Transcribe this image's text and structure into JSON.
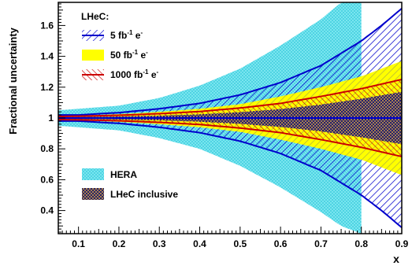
{
  "chart_data": {
    "type": "area",
    "xlabel": "x",
    "ylabel": "Fractional uncertainty",
    "xlim": [
      0.05,
      0.9
    ],
    "ylim": [
      0.25,
      1.75
    ],
    "x_ticks": [
      "0.1",
      "0.2",
      "0.3",
      "0.4",
      "0.5",
      "0.6",
      "0.7",
      "0.8",
      "0.9"
    ],
    "y_ticks": [
      "0.4",
      "0.6",
      "0.8",
      "1",
      "1.2",
      "1.4",
      "1.6"
    ],
    "x_tick_values": [
      0.1,
      0.2,
      0.3,
      0.4,
      0.5,
      0.6,
      0.7,
      0.8,
      0.9
    ],
    "y_tick_values": [
      0.4,
      0.6,
      0.8,
      1.0,
      1.2,
      1.4,
      1.6
    ],
    "legend_top": {
      "title": "LHeC:",
      "entries": [
        {
          "base": "5 fb",
          "sup": "-1",
          "suffix": " e",
          "sup2": "-",
          "style": "blue-hatch"
        },
        {
          "base": "50 fb",
          "sup": "-1",
          "suffix": " e",
          "sup2": "-",
          "style": "yellow-fill"
        },
        {
          "base": "1000 fb",
          "sup": "-1",
          "suffix": " e",
          "sup2": "-",
          "style": "red-hatch"
        }
      ],
      "placement": "top-left"
    },
    "legend_bottom": {
      "entries": [
        {
          "label": "HERA",
          "style": "cyan-crosshatch"
        },
        {
          "label": "LHeC inclusive",
          "style": "navy-crosshatch"
        }
      ],
      "placement": "bottom-left"
    },
    "series": [
      {
        "name": "HERA",
        "x": [
          0.05,
          0.1,
          0.2,
          0.3,
          0.4,
          0.5,
          0.6,
          0.7,
          0.75,
          0.8
        ],
        "upper": [
          1.05,
          1.06,
          1.08,
          1.13,
          1.21,
          1.32,
          1.47,
          1.64,
          1.75,
          1.75
        ],
        "lower": [
          0.95,
          0.94,
          0.92,
          0.87,
          0.8,
          0.69,
          0.55,
          0.39,
          0.3,
          0.25
        ],
        "color": "#7fe8f2"
      },
      {
        "name": "5 fb-1 e-",
        "x": [
          0.05,
          0.1,
          0.2,
          0.3,
          0.4,
          0.5,
          0.6,
          0.7,
          0.8,
          0.85,
          0.9
        ],
        "upper": [
          1.02,
          1.02,
          1.035,
          1.06,
          1.095,
          1.15,
          1.23,
          1.34,
          1.5,
          1.6,
          1.71
        ],
        "lower": [
          0.98,
          0.98,
          0.965,
          0.94,
          0.905,
          0.85,
          0.77,
          0.66,
          0.5,
          0.4,
          0.29
        ],
        "color": "#0000cc"
      },
      {
        "name": "50 fb-1 e-",
        "x": [
          0.05,
          0.1,
          0.2,
          0.3,
          0.4,
          0.5,
          0.6,
          0.7,
          0.8,
          0.9
        ],
        "upper": [
          1.015,
          1.016,
          1.025,
          1.04,
          1.06,
          1.09,
          1.14,
          1.2,
          1.27,
          1.37
        ],
        "lower": [
          0.985,
          0.984,
          0.975,
          0.96,
          0.94,
          0.91,
          0.86,
          0.8,
          0.73,
          0.63
        ],
        "color": "#ffff00"
      },
      {
        "name": "1000 fb-1 e-",
        "x": [
          0.05,
          0.1,
          0.2,
          0.3,
          0.4,
          0.5,
          0.6,
          0.7,
          0.8,
          0.9
        ],
        "upper": [
          1.01,
          1.012,
          1.018,
          1.028,
          1.042,
          1.065,
          1.095,
          1.14,
          1.19,
          1.25
        ],
        "lower": [
          0.99,
          0.988,
          0.982,
          0.972,
          0.958,
          0.935,
          0.905,
          0.86,
          0.81,
          0.75
        ],
        "color": "#cc0000"
      },
      {
        "name": "LHeC inclusive",
        "x": [
          0.05,
          0.1,
          0.2,
          0.3,
          0.4,
          0.5,
          0.6,
          0.7,
          0.8,
          0.9
        ],
        "upper": [
          1.005,
          1.006,
          1.01,
          1.015,
          1.024,
          1.038,
          1.058,
          1.087,
          1.125,
          1.17
        ],
        "lower": [
          0.995,
          0.994,
          0.99,
          0.985,
          0.976,
          0.962,
          0.942,
          0.913,
          0.875,
          0.83
        ],
        "color": "#1a1a66"
      }
    ]
  }
}
